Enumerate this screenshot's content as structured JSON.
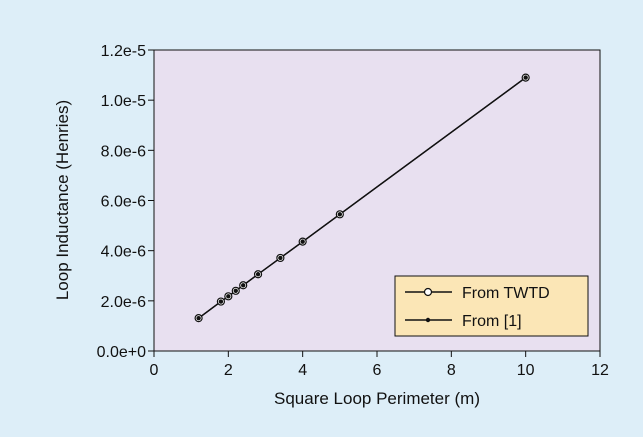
{
  "chart_data": {
    "type": "line",
    "xlabel": "Square Loop Perimeter (m)",
    "ylabel": "Loop Inductance (Henries)",
    "xlim": [
      0,
      12
    ],
    "ylim": [
      0,
      1.2e-05
    ],
    "x_ticks": [
      0,
      2,
      4,
      6,
      8,
      10,
      12
    ],
    "x_tick_labels": [
      "0",
      "2",
      "4",
      "6",
      "8",
      "10",
      "12"
    ],
    "y_ticks": [
      0,
      2e-06,
      4e-06,
      6e-06,
      8e-06,
      1e-05,
      1.2e-05
    ],
    "y_tick_labels": [
      "0.0e+0",
      "2.0e-6",
      "4.0e-6",
      "6.0e-6",
      "8.0e-6",
      "1.0e-5",
      "1.2e-5"
    ],
    "grid": false,
    "legend_position": "bottom-right",
    "series": [
      {
        "name": "From TWTD",
        "marker": "open-circle",
        "x": [
          1.2,
          1.8,
          2.0,
          2.2,
          2.4,
          2.8,
          3.4,
          4.0,
          5.0,
          10.0
        ],
        "y": [
          1.31e-06,
          1.97e-06,
          2.18e-06,
          2.4e-06,
          2.62e-06,
          3.06e-06,
          3.71e-06,
          4.36e-06,
          5.45e-06,
          1.09e-05
        ]
      },
      {
        "name": "From [1]",
        "marker": "filled-dot",
        "x": [
          1.2,
          1.8,
          2.0,
          2.2,
          2.4,
          2.8,
          3.4,
          4.0,
          5.0,
          10.0
        ],
        "y": [
          1.31e-06,
          1.97e-06,
          2.18e-06,
          2.4e-06,
          2.62e-06,
          3.06e-06,
          3.71e-06,
          4.36e-06,
          5.45e-06,
          1.09e-05
        ]
      }
    ],
    "colors": {
      "background": "#ddeef8",
      "plot_area": "#e8e0f0",
      "legend_fill": "#fbe6b6",
      "line": "#111111"
    }
  }
}
